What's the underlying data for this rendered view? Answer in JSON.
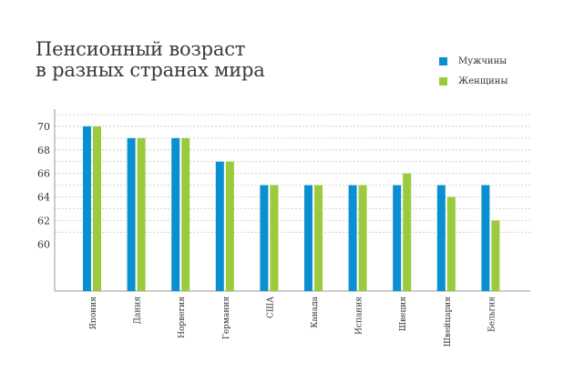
{
  "chart_data": {
    "type": "bar",
    "title_lines": [
      "Пенсионный возраст",
      "в разных странах мира"
    ],
    "categories": [
      "Япония",
      "Дания",
      "Норвегия",
      "Германия",
      "США",
      "Канада",
      "Испания",
      "Швеция",
      "Швейцария",
      "Бельгия"
    ],
    "series": [
      {
        "name": "Мужчины",
        "color": "#0a8fd0",
        "values": [
          70,
          69,
          69,
          67,
          65,
          65,
          65,
          65,
          65,
          65
        ]
      },
      {
        "name": "Женщины",
        "color": "#9acb3c",
        "values": [
          70,
          69,
          69,
          67,
          65,
          65,
          65,
          66,
          64,
          62
        ]
      }
    ],
    "yticks": [
      60,
      62,
      64,
      66,
      68,
      70
    ],
    "ylim": [
      56,
      71
    ],
    "grid": true,
    "legend_position": "top-right"
  }
}
